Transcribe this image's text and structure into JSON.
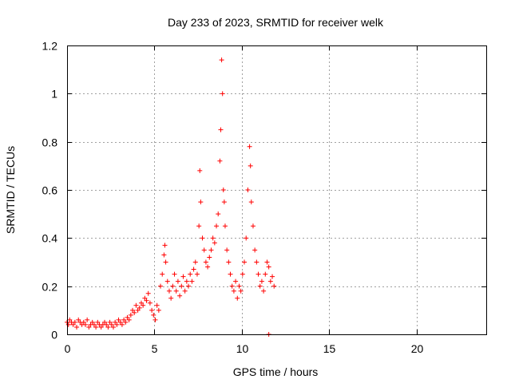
{
  "chart_data": {
    "type": "scatter",
    "title": "Day 233 of 2023, SRMTID for receiver welk",
    "xlabel": "GPS time / hours",
    "ylabel": "SRMTID / TECUs",
    "xlim": [
      0,
      24
    ],
    "ylim": [
      0,
      1.2
    ],
    "xticks": [
      0,
      5,
      10,
      15,
      20
    ],
    "xtick_labels": [
      "0",
      "5",
      "10",
      "15",
      "20"
    ],
    "yticks": [
      0,
      0.2,
      0.4,
      0.6,
      0.8,
      1.0,
      1.2
    ],
    "ytick_labels": [
      "0",
      "0.2",
      "0.4",
      "0.6",
      "0.8",
      "1",
      "1.2"
    ],
    "grid": true,
    "marker": "+",
    "series": [
      {
        "name": "SRMTID",
        "color": "#ff0000",
        "x": [
          0.0,
          0.08,
          0.15,
          0.25,
          0.35,
          0.45,
          0.55,
          0.65,
          0.75,
          0.85,
          0.95,
          1.05,
          1.15,
          1.25,
          1.35,
          1.45,
          1.55,
          1.65,
          1.75,
          1.85,
          1.95,
          2.05,
          2.15,
          2.25,
          2.35,
          2.45,
          2.55,
          2.65,
          2.75,
          2.85,
          2.95,
          3.05,
          3.15,
          3.25,
          3.35,
          3.45,
          3.55,
          3.65,
          3.75,
          3.85,
          3.95,
          4.05,
          4.15,
          4.25,
          4.35,
          4.45,
          4.55,
          4.65,
          4.75,
          4.85,
          4.95,
          5.05,
          5.15,
          5.25,
          5.35,
          5.45,
          5.55,
          5.6,
          5.65,
          5.75,
          5.85,
          5.95,
          6.05,
          6.15,
          6.25,
          6.35,
          6.45,
          6.55,
          6.65,
          6.75,
          6.85,
          6.95,
          7.05,
          7.15,
          7.25,
          7.35,
          7.45,
          7.55,
          7.6,
          7.65,
          7.75,
          7.85,
          7.95,
          8.05,
          8.15,
          8.25,
          8.35,
          8.45,
          8.55,
          8.65,
          8.75,
          8.8,
          8.85,
          8.9,
          8.95,
          9.0,
          9.05,
          9.15,
          9.25,
          9.35,
          9.45,
          9.55,
          9.65,
          9.75,
          9.85,
          9.95,
          10.05,
          10.15,
          10.25,
          10.35,
          10.45,
          10.5,
          10.55,
          10.65,
          10.75,
          10.85,
          10.95,
          11.05,
          11.15,
          11.25,
          11.35,
          11.45,
          11.55,
          11.65,
          11.75,
          11.85,
          11.55
        ],
        "y": [
          0.05,
          0.04,
          0.06,
          0.05,
          0.04,
          0.05,
          0.03,
          0.06,
          0.05,
          0.04,
          0.05,
          0.04,
          0.06,
          0.03,
          0.04,
          0.05,
          0.04,
          0.03,
          0.05,
          0.04,
          0.03,
          0.04,
          0.05,
          0.04,
          0.03,
          0.05,
          0.04,
          0.03,
          0.05,
          0.04,
          0.06,
          0.05,
          0.04,
          0.06,
          0.05,
          0.07,
          0.06,
          0.08,
          0.1,
          0.09,
          0.12,
          0.1,
          0.11,
          0.13,
          0.12,
          0.15,
          0.14,
          0.17,
          0.13,
          0.1,
          0.08,
          0.06,
          0.12,
          0.1,
          0.2,
          0.25,
          0.33,
          0.37,
          0.3,
          0.22,
          0.18,
          0.15,
          0.2,
          0.25,
          0.18,
          0.22,
          0.16,
          0.2,
          0.24,
          0.18,
          0.22,
          0.2,
          0.25,
          0.22,
          0.27,
          0.3,
          0.25,
          0.45,
          0.68,
          0.55,
          0.4,
          0.35,
          0.3,
          0.28,
          0.32,
          0.35,
          0.4,
          0.38,
          0.45,
          0.5,
          0.72,
          0.85,
          1.14,
          1.0,
          0.6,
          0.55,
          0.45,
          0.35,
          0.3,
          0.25,
          0.2,
          0.18,
          0.22,
          0.15,
          0.2,
          0.18,
          0.25,
          0.3,
          0.4,
          0.6,
          0.78,
          0.7,
          0.55,
          0.45,
          0.35,
          0.3,
          0.25,
          0.2,
          0.22,
          0.18,
          0.25,
          0.3,
          0.28,
          0.22,
          0.24,
          0.2,
          0.0
        ]
      }
    ]
  }
}
